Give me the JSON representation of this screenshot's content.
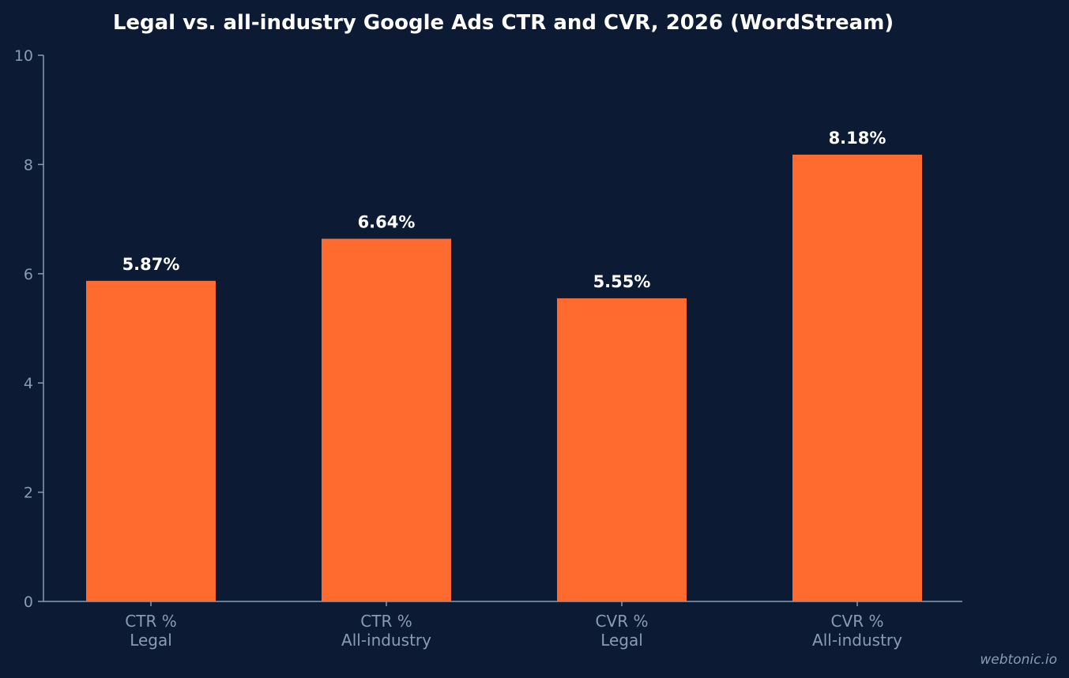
{
  "chart_data": {
    "type": "bar",
    "title": "Legal vs. all-industry Google Ads CTR and CVR, 2026 (WordStream)",
    "categories": [
      [
        "CTR %",
        "Legal"
      ],
      [
        "CTR %",
        "All-industry"
      ],
      [
        "CVR %",
        "Legal"
      ],
      [
        "CVR %",
        "All-industry"
      ]
    ],
    "values": [
      5.87,
      6.64,
      5.55,
      8.18
    ],
    "data_labels": [
      "5.87%",
      "6.64%",
      "5.55%",
      "8.18%"
    ],
    "xlabel": "",
    "ylabel": "",
    "ylim": [
      0,
      10
    ],
    "yticks": [
      "0",
      "2",
      "4",
      "6",
      "8",
      "10"
    ],
    "grid": false,
    "legend": "none",
    "colors": {
      "background": "#0c1b33",
      "bar": "#ff6b2f",
      "axis": "#8a9bb5",
      "title": "#ffffff",
      "data_label": "#ffffff"
    }
  },
  "watermark": "webtonic.io"
}
